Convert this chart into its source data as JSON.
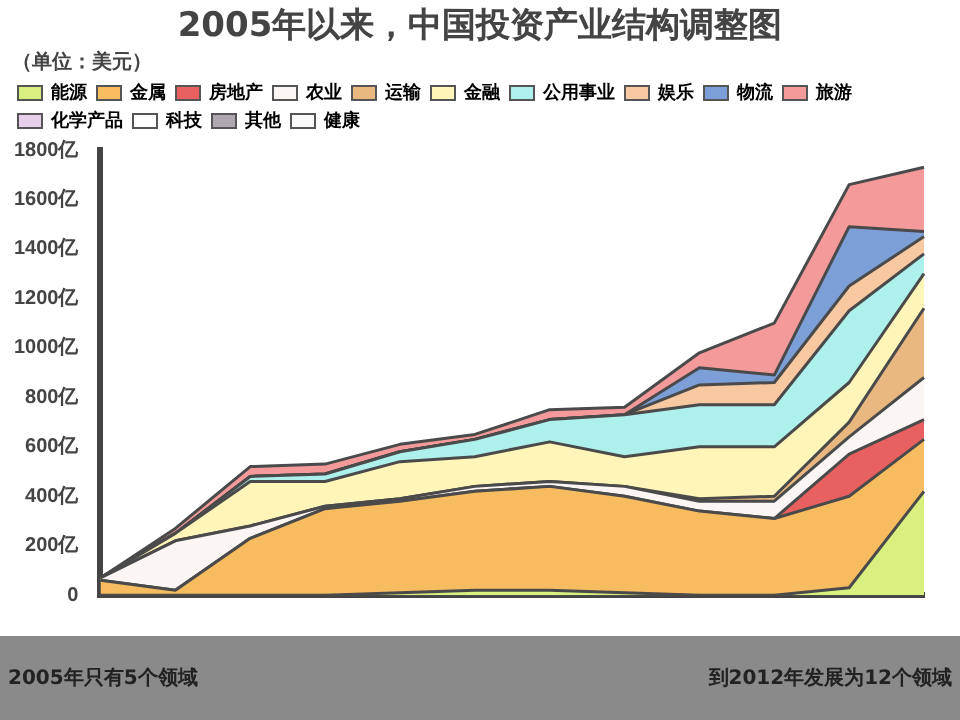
{
  "chart_data": {
    "type": "area",
    "stacked": true,
    "title": "2005年以来，中国投资产业结构调整图",
    "ylabel": "（单位：美元）",
    "categories": [
      null,
      null,
      null,
      null,
      null,
      null,
      null,
      null,
      null,
      null,
      null,
      null
    ],
    "series": [
      {
        "name": "能源",
        "color": "#d8f080",
        "values": [
          0,
          0,
          0,
          0,
          10,
          20,
          20,
          10,
          0,
          0,
          30,
          420
        ]
      },
      {
        "name": "金属",
        "color": "#f8bc60",
        "values": [
          60,
          20,
          230,
          350,
          370,
          400,
          420,
          390,
          340,
          310,
          370,
          210
        ]
      },
      {
        "name": "房地产",
        "color": "#e86060",
        "values": [
          0,
          0,
          0,
          0,
          0,
          0,
          0,
          0,
          0,
          0,
          170,
          80
        ]
      },
      {
        "name": "农业",
        "color": "#fbf6f4",
        "values": [
          10,
          200,
          50,
          10,
          10,
          20,
          20,
          40,
          40,
          70,
          70,
          170
        ]
      },
      {
        "name": "运输",
        "color": "#e8b880",
        "values": [
          0,
          0,
          0,
          0,
          0,
          0,
          0,
          0,
          10,
          20,
          60,
          280
        ]
      },
      {
        "name": "金融",
        "color": "#fff5b8",
        "values": [
          0,
          30,
          180,
          100,
          150,
          120,
          160,
          120,
          210,
          200,
          160,
          140
        ]
      },
      {
        "name": "公用事业",
        "color": "#aef0ec",
        "values": [
          0,
          0,
          20,
          30,
          40,
          70,
          90,
          170,
          170,
          170,
          290,
          80
        ]
      },
      {
        "name": "娱乐",
        "color": "#f8c8a0",
        "values": [
          0,
          0,
          0,
          0,
          0,
          0,
          0,
          0,
          80,
          90,
          100,
          70
        ]
      },
      {
        "name": "物流",
        "color": "#7d9fd8",
        "values": [
          0,
          0,
          0,
          0,
          0,
          0,
          0,
          0,
          70,
          30,
          240,
          20
        ]
      },
      {
        "name": "旅游",
        "color": "#f49a9a",
        "values": [
          0,
          20,
          40,
          40,
          30,
          20,
          40,
          30,
          60,
          210,
          170,
          260
        ]
      },
      {
        "name": "化学产品",
        "color": "#e8d0ec",
        "values": [
          null,
          null,
          null,
          null,
          null,
          null,
          null,
          null,
          null,
          null,
          null,
          null
        ]
      },
      {
        "name": "科技",
        "color": "#ffffff",
        "values": [
          null,
          null,
          null,
          null,
          null,
          null,
          null,
          null,
          null,
          null,
          null,
          null
        ]
      },
      {
        "name": "其他",
        "color": "#b0a8b0",
        "values": [
          null,
          null,
          null,
          null,
          null,
          null,
          null,
          null,
          null,
          null,
          null,
          null
        ]
      },
      {
        "name": "健康",
        "color": "#fafafa",
        "values": [
          null,
          null,
          null,
          null,
          null,
          null,
          null,
          null,
          null,
          null,
          null,
          null
        ]
      }
    ],
    "ylim": [
      0,
      1800
    ],
    "yticks": [
      0,
      {
        "value": 200,
        "label": "200亿"
      },
      {
        "value": 400,
        "label": "400亿"
      },
      {
        "value": 600,
        "label": "600亿"
      },
      {
        "value": 800,
        "label": "800亿"
      },
      {
        "value": 1000,
        "label": "1000亿"
      },
      {
        "value": 1200,
        "label": "1200亿"
      },
      {
        "value": 1400,
        "label": "1400亿"
      },
      {
        "value": 1600,
        "label": "1600亿"
      },
      {
        "value": 1800,
        "label": "1800亿"
      }
    ],
    "grid": false,
    "legend": "top",
    "marker": "none",
    "annotations": [
      "2005年只有5个领域",
      "到2012年发展为12个领域"
    ]
  }
}
